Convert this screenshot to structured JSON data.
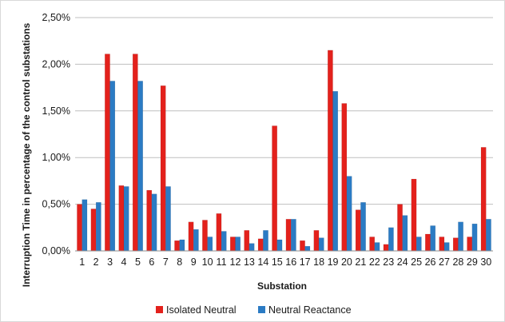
{
  "chart_data": {
    "type": "bar",
    "title": "",
    "xlabel": "Substation",
    "ylabel": "Interruption Time in percentage of the control substations",
    "ylim": [
      0,
      0.025
    ],
    "yticks": [
      "0,00%",
      "0,50%",
      "1,00%",
      "1,50%",
      "2,00%",
      "2,50%"
    ],
    "grid": true,
    "legend_position": "bottom",
    "categories": [
      "1",
      "2",
      "3",
      "4",
      "5",
      "6",
      "7",
      "8",
      "9",
      "10",
      "11",
      "12",
      "13",
      "14",
      "15",
      "16",
      "17",
      "18",
      "19",
      "20",
      "21",
      "22",
      "23",
      "24",
      "25",
      "26",
      "27",
      "28",
      "29",
      "30"
    ],
    "series": [
      {
        "name": "Isolated Neutral",
        "color": "#e3211c",
        "values": [
          0.005,
          0.0045,
          0.0211,
          0.007,
          0.0211,
          0.0065,
          0.0177,
          0.0011,
          0.0031,
          0.0033,
          0.004,
          0.0015,
          0.0022,
          0.0013,
          0.0134,
          0.0034,
          0.0011,
          0.0022,
          0.0215,
          0.0158,
          0.0044,
          0.0015,
          0.0007,
          0.005,
          0.0077,
          0.0018,
          0.0015,
          0.0014,
          0.0015,
          0.0111
        ]
      },
      {
        "name": "Neutral Reactance",
        "color": "#2b7bc4",
        "values": [
          0.0055,
          0.0052,
          0.0182,
          0.0069,
          0.0182,
          0.0061,
          0.0069,
          0.0012,
          0.0023,
          0.0015,
          0.0021,
          0.0015,
          0.0008,
          0.0022,
          0.0012,
          0.0034,
          0.0005,
          0.0014,
          0.0171,
          0.008,
          0.0052,
          0.0009,
          0.0025,
          0.0038,
          0.0015,
          0.0027,
          0.0009,
          0.0031,
          0.0029,
          0.0034
        ]
      }
    ]
  }
}
